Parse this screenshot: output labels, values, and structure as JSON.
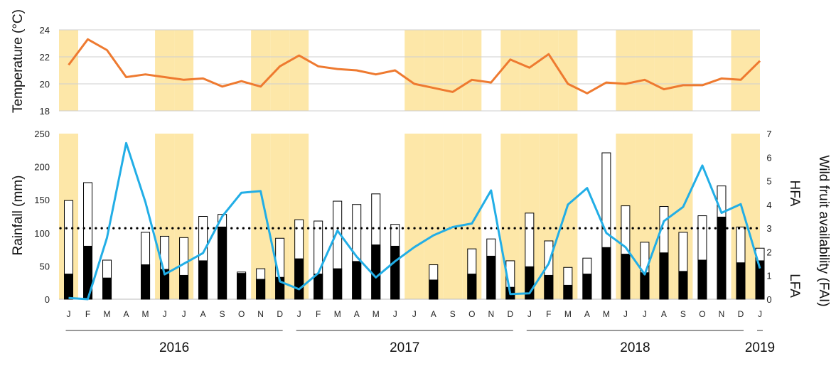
{
  "colors": {
    "shade": "#fde7a8",
    "temperature": "#ee7a30",
    "fai": "#22aee6",
    "rain_black": "#000000",
    "rain_bar_outline": "#000000"
  },
  "chart_data": [
    {
      "type": "line",
      "ylabel": "Temperature (°C)",
      "ylim": [
        18,
        24
      ],
      "yticks": [
        18,
        20,
        22,
        24
      ],
      "grid": true,
      "x_count": 37,
      "shaded_months": [
        0,
        5,
        6,
        10,
        11,
        12,
        18,
        19,
        20,
        21,
        23,
        24,
        25,
        26,
        29,
        30,
        31,
        32,
        35,
        36
      ],
      "series": [
        {
          "values": [
            21.4,
            23.3,
            22.5,
            20.5,
            20.7,
            20.5,
            20.3,
            20.4,
            19.8,
            20.2,
            19.8,
            21.3,
            22.1,
            21.3,
            21.1,
            21.0,
            20.7,
            21.0,
            20.0,
            19.7,
            19.4,
            20.3,
            20.1,
            21.8,
            21.2,
            22.2,
            20.0,
            19.3,
            20.1,
            20.0,
            20.3,
            19.6,
            19.9,
            19.9,
            20.4,
            20.3,
            21.7
          ]
        }
      ]
    },
    {
      "type": "bar",
      "ylabel": "Rainfall (mm)",
      "y2label": "Wild fruit availability (FAI)",
      "ylim": [
        0,
        250
      ],
      "yticks": [
        0,
        50,
        100,
        150,
        200,
        250
      ],
      "y2lim": [
        0,
        7
      ],
      "y2ticks": [
        0,
        1,
        2,
        3,
        4,
        5,
        6,
        7
      ],
      "categories": [
        "J",
        "F",
        "M",
        "A",
        "M",
        "J",
        "J",
        "A",
        "S",
        "O",
        "N",
        "D",
        "J",
        "F",
        "M",
        "A",
        "M",
        "J",
        "J",
        "A",
        "S",
        "O",
        "N",
        "D",
        "J",
        "F",
        "M",
        "A",
        "M",
        "J",
        "J",
        "A",
        "S",
        "O",
        "N",
        "D",
        "J"
      ],
      "years": [
        {
          "label": "2016",
          "start": 0,
          "end": 11
        },
        {
          "label": "2017",
          "start": 12,
          "end": 23
        },
        {
          "label": "2018",
          "start": 24,
          "end": 35
        },
        {
          "label": "2019",
          "start": 36,
          "end": 36
        }
      ],
      "threshold_fai": 3,
      "zone_labels": {
        "high": "HFA",
        "low": "LFA"
      },
      "series": [
        {
          "kind": "bar-total",
          "values": [
            149,
            176,
            59,
            0,
            101,
            95,
            93,
            125,
            128,
            41,
            46,
            92,
            120,
            118,
            148,
            143,
            159,
            113,
            0,
            52,
            0,
            76,
            91,
            58,
            130,
            88,
            48,
            62,
            221,
            141,
            86,
            140,
            101,
            126,
            171,
            109,
            77
          ]
        },
        {
          "kind": "bar-black",
          "values": [
            38,
            80,
            32,
            0,
            52,
            45,
            36,
            58,
            109,
            39,
            30,
            33,
            61,
            38,
            46,
            57,
            82,
            80,
            0,
            29,
            0,
            38,
            65,
            18,
            49,
            36,
            21,
            38,
            78,
            68,
            40,
            70,
            42,
            59,
            124,
            55,
            58
          ]
        },
        {
          "kind": "line-fai",
          "values": [
            0.05,
            0.0,
            2.6,
            6.6,
            4.1,
            1.05,
            1.5,
            1.95,
            3.5,
            4.5,
            4.57,
            0.75,
            0.42,
            1.1,
            2.9,
            1.8,
            0.92,
            1.6,
            2.2,
            2.7,
            3.05,
            3.2,
            4.6,
            0.22,
            0.25,
            1.5,
            4.0,
            4.7,
            2.8,
            2.2,
            1.05,
            3.3,
            3.9,
            5.65,
            3.65,
            4.02,
            1.3
          ]
        }
      ]
    }
  ]
}
